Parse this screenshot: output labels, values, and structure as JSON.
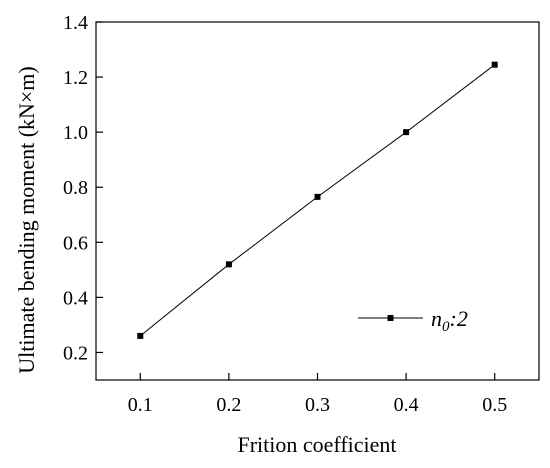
{
  "chart_data": {
    "type": "line",
    "xlabel": "Frition coefficient",
    "ylabel": "Ultimate bending moment (kN×m)",
    "xlim": [
      0.05,
      0.55
    ],
    "ylim": [
      0.1,
      1.4
    ],
    "x_ticks": [
      "0.1",
      "0.2",
      "0.3",
      "0.4",
      "0.5"
    ],
    "y_ticks": [
      "0.2",
      "0.4",
      "0.6",
      "0.8",
      "1.0",
      "1.2",
      "1.4"
    ],
    "grid": false,
    "legend_position": "lower-right",
    "series": [
      {
        "name_main": "n",
        "name_sub": "0",
        "name_rest": ":2",
        "color": "#000000",
        "marker": "square",
        "x": [
          0.1,
          0.2,
          0.3,
          0.4,
          0.5
        ],
        "y": [
          0.26,
          0.52,
          0.765,
          1.0,
          1.245
        ]
      }
    ]
  }
}
